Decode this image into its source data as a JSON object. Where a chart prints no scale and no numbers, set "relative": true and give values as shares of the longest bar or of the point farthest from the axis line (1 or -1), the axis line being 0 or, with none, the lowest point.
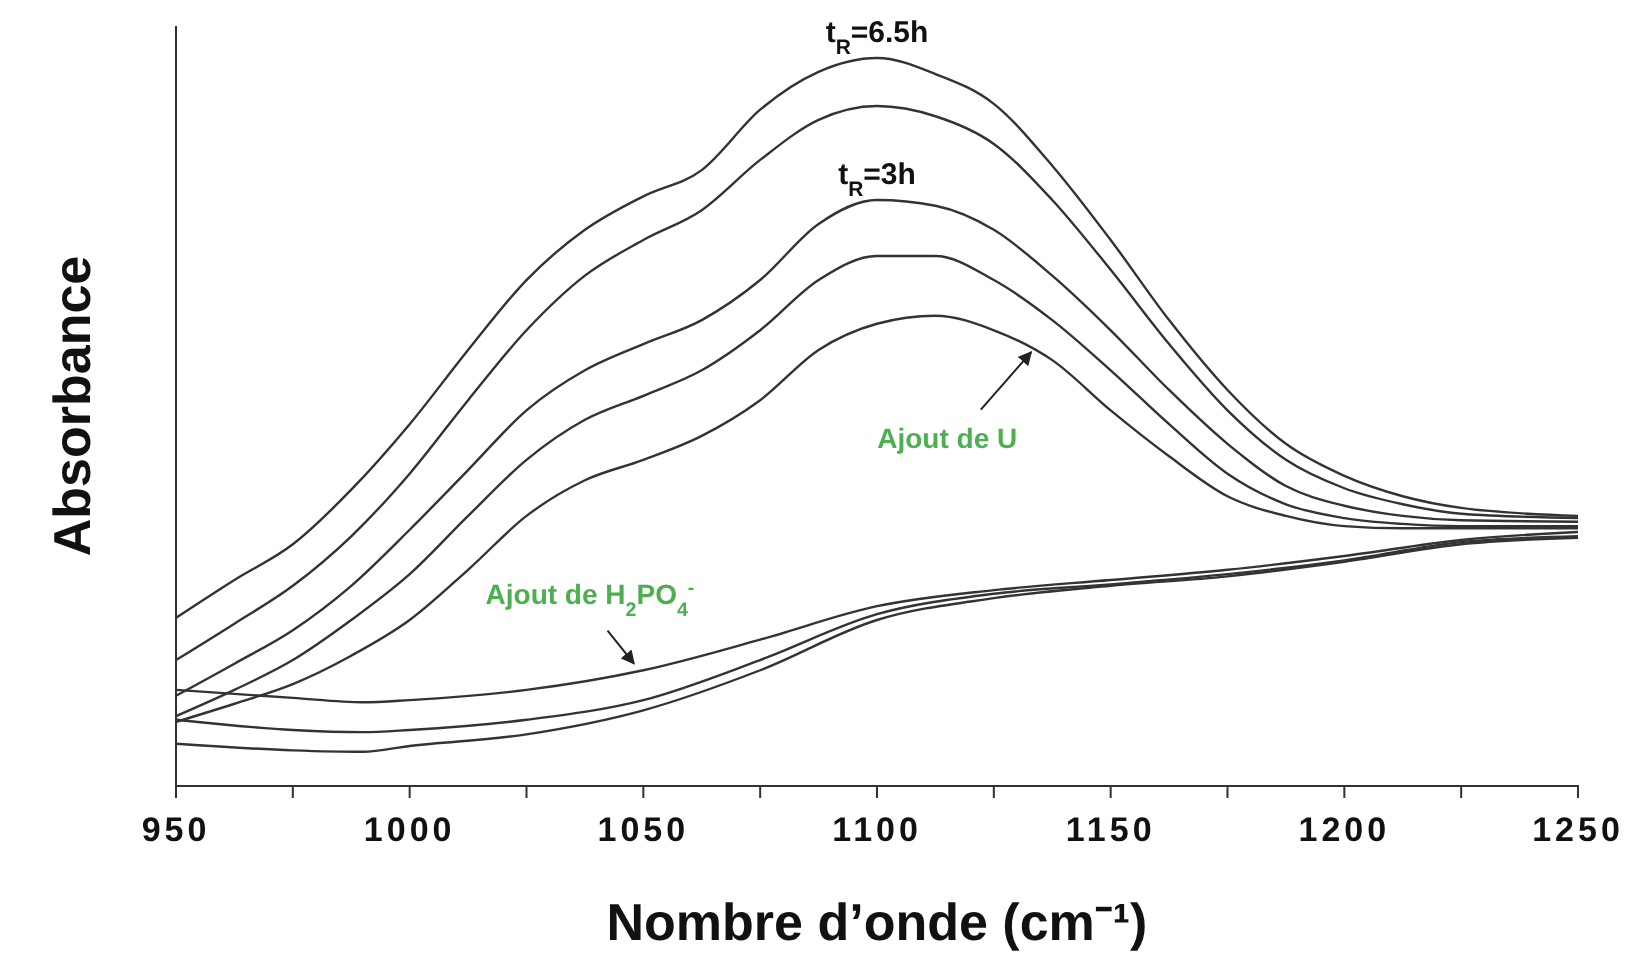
{
  "chart_data": {
    "type": "line",
    "relative": true,
    "xlabel": "Nombre d’onde (cm⁻¹)",
    "ylabel": "Absorbance",
    "xlim": [
      950,
      1250
    ],
    "xticks": [
      950,
      {
        "value": 975,
        "label": null
      },
      1000,
      {
        "value": 1025,
        "label": null
      },
      1050,
      {
        "value": 1075,
        "label": null
      },
      1100,
      {
        "value": 1125,
        "label": null
      },
      1150,
      {
        "value": 1175,
        "label": null
      },
      1200,
      {
        "value": 1225,
        "label": null
      },
      1250
    ],
    "marker": "none",
    "line_style": "solid",
    "series": [
      {
        "color": "#333333",
        "x": [
          950,
          962.5,
          975,
          987.5,
          1000,
          1012.5,
          1025,
          1037.5,
          1050,
          1062.5,
          1075,
          1087.5,
          1100,
          1112.5,
          1125,
          1137.5,
          1150,
          1162.5,
          1175,
          1187.5,
          1200,
          1212.5,
          1225,
          1250
        ],
        "values": [
          0.231,
          0.283,
          0.332,
          0.407,
          0.497,
          0.599,
          0.695,
          0.764,
          0.81,
          0.846,
          0.929,
          0.981,
          1.0,
          0.978,
          0.937,
          0.852,
          0.75,
          0.64,
          0.544,
          0.47,
          0.426,
          0.398,
          0.382,
          0.371
        ]
      },
      {
        "color": "#333333",
        "x": [
          950,
          962.5,
          975,
          987.5,
          1000,
          1012.5,
          1025,
          1037.5,
          1050,
          1062.5,
          1075,
          1087.5,
          1100,
          1112.5,
          1125,
          1137.5,
          1150,
          1162.5,
          1175,
          1187.5,
          1200,
          1212.5,
          1225,
          1250
        ],
        "values": [
          0.173,
          0.223,
          0.275,
          0.343,
          0.429,
          0.53,
          0.626,
          0.701,
          0.75,
          0.791,
          0.86,
          0.915,
          0.934,
          0.92,
          0.882,
          0.805,
          0.709,
          0.607,
          0.516,
          0.448,
          0.409,
          0.387,
          0.374,
          0.368
        ]
      },
      {
        "color": "#333333",
        "x": [
          950,
          962.5,
          975,
          987.5,
          1000,
          1012.5,
          1025,
          1037.5,
          1050,
          1062.5,
          1075,
          1087.5,
          1100,
          1112.5,
          1125,
          1137.5,
          1150,
          1162.5,
          1175,
          1187.5,
          1200,
          1212.5,
          1225,
          1250
        ],
        "values": [
          0.124,
          0.168,
          0.214,
          0.275,
          0.352,
          0.434,
          0.516,
          0.571,
          0.607,
          0.64,
          0.695,
          0.772,
          0.805,
          0.797,
          0.764,
          0.701,
          0.626,
          0.544,
          0.47,
          0.412,
          0.385,
          0.371,
          0.365,
          0.363
        ]
      },
      {
        "color": "#333333",
        "x": [
          950,
          962.5,
          975,
          987.5,
          1000,
          1012.5,
          1025,
          1037.5,
          1050,
          1062.5,
          1075,
          1087.5,
          1100,
          1112.5,
          1125,
          1137.5,
          1150,
          1162.5,
          1175,
          1187.5,
          1200,
          1212.5,
          1225,
          1250
        ],
        "values": [
          0.096,
          0.132,
          0.173,
          0.228,
          0.291,
          0.371,
          0.448,
          0.503,
          0.536,
          0.571,
          0.626,
          0.695,
          0.728,
          0.728,
          0.695,
          0.64,
          0.571,
          0.497,
          0.429,
          0.387,
          0.368,
          0.36,
          0.357,
          0.357
        ]
      },
      {
        "color": "#333333",
        "x": [
          950,
          962.5,
          975,
          987.5,
          1000,
          1012.5,
          1025,
          1037.5,
          1050,
          1062.5,
          1075,
          1087.5,
          1100,
          1112.5,
          1125,
          1137.5,
          1150,
          1162.5,
          1175,
          1187.5,
          1200,
          1212.5,
          1225,
          1250
        ],
        "values": [
          0.088,
          0.113,
          0.14,
          0.179,
          0.228,
          0.297,
          0.371,
          0.42,
          0.448,
          0.481,
          0.53,
          0.599,
          0.635,
          0.646,
          0.626,
          0.585,
          0.516,
          0.453,
          0.398,
          0.371,
          0.357,
          0.354,
          0.354,
          0.354
        ]
      },
      {
        "color": "#333333",
        "x": [
          950,
          975,
          990,
          1000,
          1025,
          1050,
          1075,
          1100,
          1125,
          1150,
          1175,
          1200,
          1225,
          1250
        ],
        "values": [
          0.132,
          0.121,
          0.115,
          0.118,
          0.132,
          0.159,
          0.201,
          0.247,
          0.269,
          0.283,
          0.297,
          0.316,
          0.338,
          0.349
        ]
      },
      {
        "color": "#333333",
        "x": [
          950,
          975,
          990,
          1000,
          1025,
          1050,
          1075,
          1100,
          1125,
          1150,
          1175,
          1200,
          1225,
          1250
        ],
        "values": [
          0.091,
          0.077,
          0.074,
          0.077,
          0.091,
          0.118,
          0.173,
          0.236,
          0.264,
          0.277,
          0.291,
          0.31,
          0.335,
          0.343
        ]
      },
      {
        "color": "#333333",
        "x": [
          950,
          975,
          990,
          1000,
          1025,
          1050,
          1075,
          1100,
          1125,
          1150,
          1175,
          1200,
          1225,
          1250
        ],
        "values": [
          0.058,
          0.049,
          0.047,
          0.055,
          0.071,
          0.104,
          0.159,
          0.228,
          0.258,
          0.275,
          0.288,
          0.308,
          0.332,
          0.341
        ]
      }
    ],
    "annotations": [
      {
        "text": "t$_{R}$=6.5h",
        "x": 1100,
        "y": 1.0
      },
      {
        "text": "t$_{R}$=3h",
        "x": 1100,
        "y": 0.805
      },
      {
        "text": "Ajout de U",
        "x": 1133,
        "y": 0.596
      },
      {
        "text": "Ajout de H$_{2}$PO$_{4}$$^{-}$",
        "x": 1048,
        "y": 0.168
      }
    ]
  }
}
